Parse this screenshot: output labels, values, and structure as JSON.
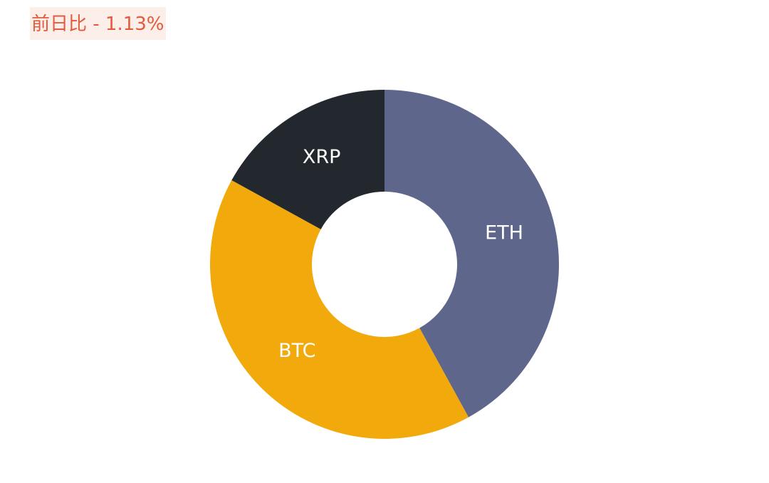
{
  "chart_data": {
    "type": "donut",
    "title": "前日比 - 1.13%",
    "categories": [
      "ETH",
      "BTC",
      "XRP"
    ],
    "values": [
      42,
      41,
      17
    ],
    "colors": [
      "#5f668c",
      "#f2a90c",
      "#23272e"
    ]
  }
}
